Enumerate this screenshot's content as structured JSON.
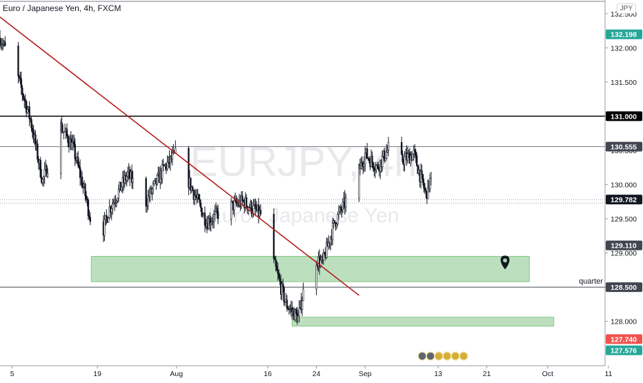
{
  "chart_data": {
    "type": "candlestick",
    "title": "Euro / Japanese Yen, 4h, FXCM",
    "currency_unit": "JPY",
    "watermark_main": "EURJPY, 4h",
    "watermark_sub": "Euro / Japanese Yen",
    "x_tick_labels": [
      "5",
      "19",
      "Aug",
      "16",
      "24",
      "Sep",
      "13",
      "21",
      "Oct",
      "11"
    ],
    "x_tick_dates": [
      "2020-07-05",
      "2020-07-19",
      "2020-08-01",
      "2020-08-16",
      "2020-08-24",
      "2020-09-01",
      "2020-09-13",
      "2020-09-21",
      "2020-10-01",
      "2020-10-11"
    ],
    "x_range": [
      "2020-07-03",
      "2020-10-15"
    ],
    "ylim": [
      127.35,
      132.7
    ],
    "y_tick_values": [
      128.0,
      128.5,
      129.0,
      129.5,
      130.0,
      130.5,
      131.0,
      131.5,
      132.0,
      132.5
    ],
    "y_tick_labels": [
      "128.000",
      "128.500",
      "129.000",
      "129.500",
      "130.000",
      "130.500",
      "131.000",
      "131.500",
      "132.000",
      "132.500"
    ],
    "price_path": [
      {
        "date": "2020-07-03",
        "price": 132.15
      },
      {
        "date": "2020-07-06",
        "price": 131.55
      },
      {
        "date": "2020-07-08",
        "price": 130.95
      },
      {
        "date": "2020-07-10",
        "price": 130.05
      },
      {
        "date": "2020-07-13",
        "price": 130.85
      },
      {
        "date": "2020-07-15",
        "price": 130.55
      },
      {
        "date": "2020-07-17",
        "price": 129.85
      },
      {
        "date": "2020-07-19",
        "price": 129.05
      },
      {
        "date": "2020-07-21",
        "price": 129.65
      },
      {
        "date": "2020-07-24",
        "price": 130.15
      },
      {
        "date": "2020-07-27",
        "price": 129.75
      },
      {
        "date": "2020-07-30",
        "price": 130.25
      },
      {
        "date": "2020-08-01",
        "price": 130.45
      },
      {
        "date": "2020-08-03",
        "price": 130.05
      },
      {
        "date": "2020-08-06",
        "price": 129.45
      },
      {
        "date": "2020-08-09",
        "price": 129.65
      },
      {
        "date": "2020-08-12",
        "price": 129.75
      },
      {
        "date": "2020-08-15",
        "price": 129.55
      },
      {
        "date": "2020-08-17",
        "price": 128.85
      },
      {
        "date": "2020-08-19",
        "price": 128.25
      },
      {
        "date": "2020-08-21",
        "price": 128.05
      },
      {
        "date": "2020-08-23",
        "price": 128.95
      },
      {
        "date": "2020-08-25",
        "price": 128.85
      },
      {
        "date": "2020-08-27",
        "price": 129.45
      },
      {
        "date": "2020-08-30",
        "price": 129.95
      },
      {
        "date": "2020-09-01",
        "price": 130.45
      },
      {
        "date": "2020-09-03",
        "price": 130.25
      },
      {
        "date": "2020-09-05",
        "price": 130.55
      },
      {
        "date": "2020-09-07",
        "price": 130.35
      },
      {
        "date": "2020-09-09",
        "price": 130.45
      },
      {
        "date": "2020-09-11",
        "price": 129.85
      },
      {
        "date": "2020-09-12",
        "price": 130.15
      },
      {
        "date": "2020-09-13",
        "price": 129.78
      }
    ],
    "trendline": {
      "color": "#b71c1c",
      "start": {
        "date": "2020-07-03",
        "price": 132.45
      },
      "end": {
        "date": "2020-08-31",
        "price": 128.38
      }
    },
    "horizontal_lines": [
      {
        "price": 131.0,
        "color": "#000000",
        "label": "131.000"
      },
      {
        "price": 130.555,
        "color": "#787b86",
        "label": "130.555"
      },
      {
        "price": 128.5,
        "color": "#434651",
        "label": "128.500",
        "note": "quarter"
      },
      {
        "price": 132.68,
        "color": "#787b86",
        "label": ""
      }
    ],
    "zones": [
      {
        "from_date": "2020-07-18",
        "to_date": "2020-09-28",
        "low": 128.58,
        "high": 128.95,
        "color": "#a5d6a7"
      },
      {
        "from_date": "2020-08-20",
        "to_date": "2020-10-02",
        "low": 127.93,
        "high": 128.06,
        "color": "#a5d6a7"
      }
    ],
    "price_badges": [
      {
        "value": 132.198,
        "label": "132.198",
        "color": "#26a69a"
      },
      {
        "value": 129.782,
        "label": "129.782",
        "color": "#131722"
      },
      {
        "value": 129.11,
        "label": "129.110",
        "color": "#434651"
      },
      {
        "value": 127.74,
        "label": "127.740",
        "color": "#ef5350"
      },
      {
        "value": 127.576,
        "label": "127.576",
        "color": "#26a69a"
      }
    ],
    "last_price": 129.782,
    "grid": false
  }
}
